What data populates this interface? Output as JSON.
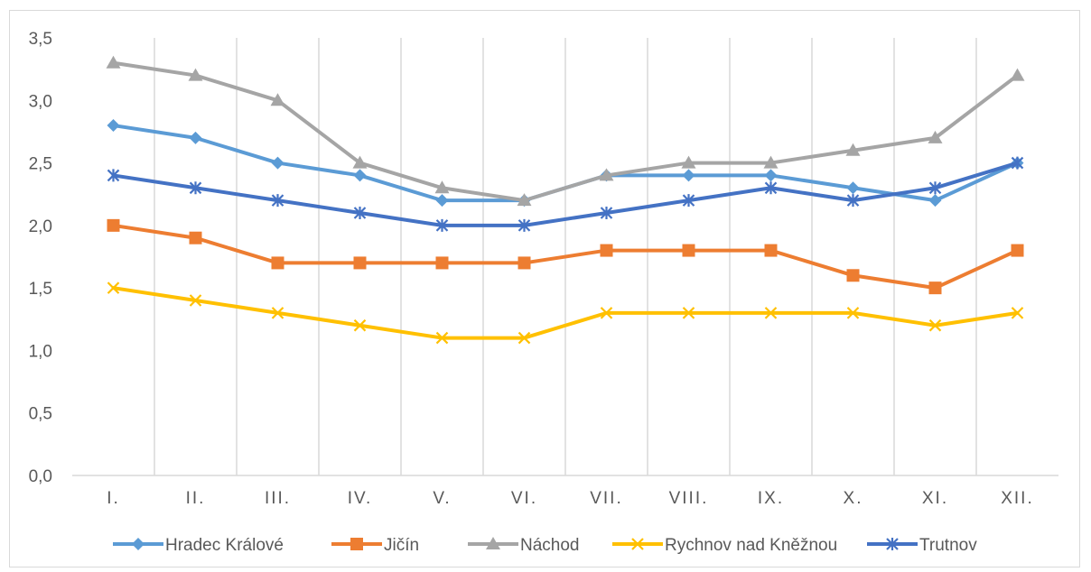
{
  "chart_data": {
    "type": "line",
    "title": "",
    "xlabel": "",
    "ylabel": "",
    "categories": [
      "I.",
      "II.",
      "III.",
      "IV.",
      "V.",
      "VI.",
      "VII.",
      "VIII.",
      "IX.",
      "X.",
      "XI.",
      "XII."
    ],
    "ylim": [
      0,
      3.5
    ],
    "yticks": [
      "0,0",
      "0,5",
      "1,0",
      "1,5",
      "2,0",
      "2,5",
      "3,0",
      "3,5"
    ],
    "grid": "vertical",
    "legend": "bottom",
    "series": [
      {
        "name": "Hradec Králové",
        "color": "#5b9bd5",
        "marker": "diamond",
        "values": [
          2.8,
          2.7,
          2.5,
          2.4,
          2.2,
          2.2,
          2.4,
          2.4,
          2.4,
          2.3,
          2.2,
          2.5
        ]
      },
      {
        "name": "Jičín",
        "color": "#ed7d31",
        "marker": "square",
        "values": [
          2.0,
          1.9,
          1.7,
          1.7,
          1.7,
          1.7,
          1.8,
          1.8,
          1.8,
          1.6,
          1.5,
          1.8
        ]
      },
      {
        "name": "Náchod",
        "color": "#a5a5a5",
        "marker": "triangle",
        "values": [
          3.3,
          3.2,
          3.0,
          2.5,
          2.3,
          2.2,
          2.4,
          2.5,
          2.5,
          2.6,
          2.7,
          3.2
        ]
      },
      {
        "name": "Rychnov nad Kněžnou",
        "color": "#ffc000",
        "marker": "x",
        "values": [
          1.5,
          1.4,
          1.3,
          1.2,
          1.1,
          1.1,
          1.3,
          1.3,
          1.3,
          1.3,
          1.2,
          1.3
        ]
      },
      {
        "name": "Trutnov",
        "color": "#4472c4",
        "marker": "star",
        "values": [
          2.4,
          2.3,
          2.2,
          2.1,
          2.0,
          2.0,
          2.1,
          2.2,
          2.3,
          2.2,
          2.3,
          2.5
        ]
      }
    ]
  }
}
